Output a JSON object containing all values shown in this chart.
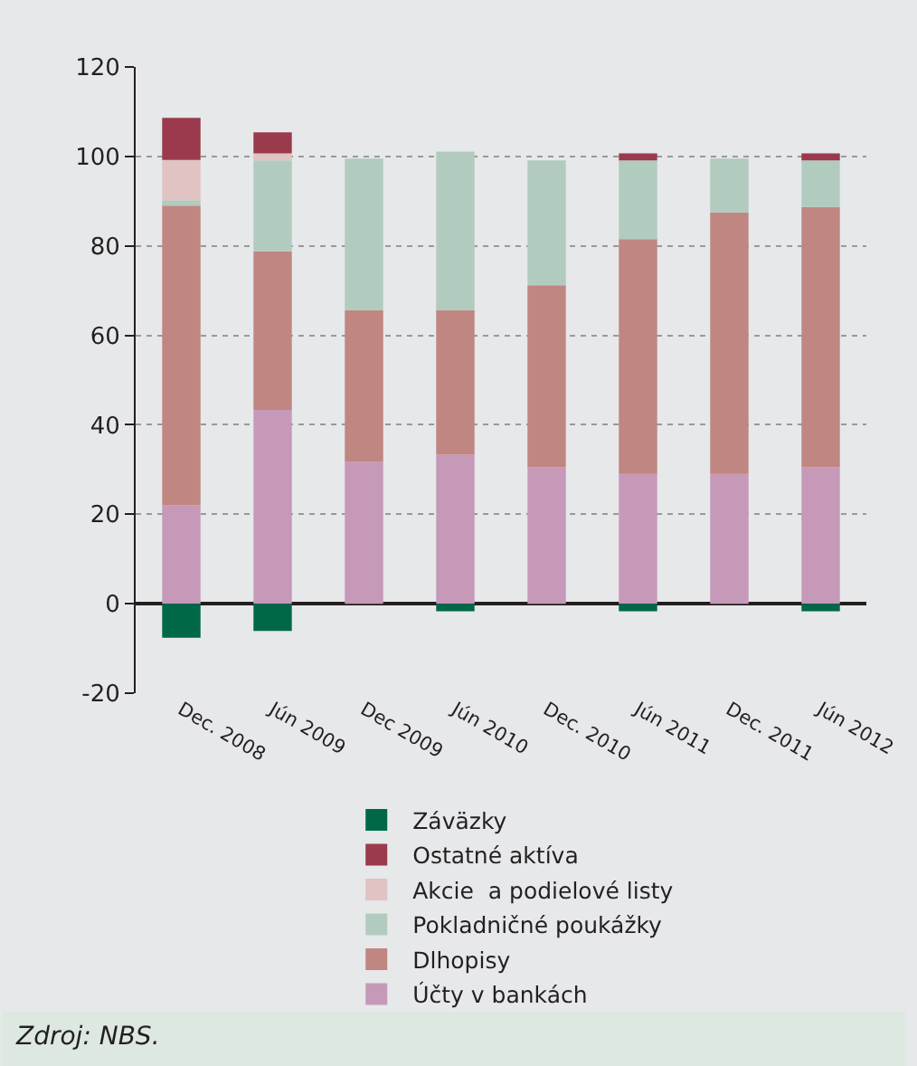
{
  "chart_data": {
    "type": "bar",
    "stacked": true,
    "categories": [
      "Dec. 2008",
      "Jún 2009",
      "Dec 2009",
      "Jún 2010",
      "Dec. 2010",
      "Jún 2011",
      "Dec. 2011",
      "Jún 2012"
    ],
    "series": [
      {
        "name": "Účty v bankách",
        "color": "#c699b8",
        "values": [
          22,
          43.3,
          31.7,
          33.3,
          30.5,
          29,
          29,
          30.5
        ]
      },
      {
        "name": "Dlhopisy",
        "color": "#c08682",
        "values": [
          67,
          35.5,
          33.9,
          32.3,
          40.7,
          52.5,
          58.5,
          58.2
        ]
      },
      {
        "name": "Pokladničné poukážky",
        "color": "#b2cbbf",
        "values": [
          1.2,
          20.3,
          33.9,
          35.5,
          27.9,
          17.6,
          12,
          10.4
        ]
      },
      {
        "name": "Akcie  a podielové listy",
        "color": "#e0c3c2",
        "values": [
          9,
          1.6,
          null,
          null,
          null,
          null,
          null,
          null
        ]
      },
      {
        "name": "Ostatné aktíva",
        "color": "#9b3a4c",
        "values": [
          9.4,
          4.7,
          null,
          null,
          null,
          1.6,
          null,
          1.6
        ]
      },
      {
        "name": "Záväzky",
        "color": "#006848",
        "values": [
          -7.6,
          -6.1,
          null,
          -1.7,
          null,
          -1.7,
          null,
          -1.7
        ]
      }
    ],
    "ylim": [
      -20,
      120
    ],
    "yticks": [
      -20,
      0,
      20,
      40,
      60,
      80,
      100,
      120
    ],
    "grid": "y",
    "legend": "bottom",
    "annotations": [
      "Zdroj: NBS."
    ]
  }
}
